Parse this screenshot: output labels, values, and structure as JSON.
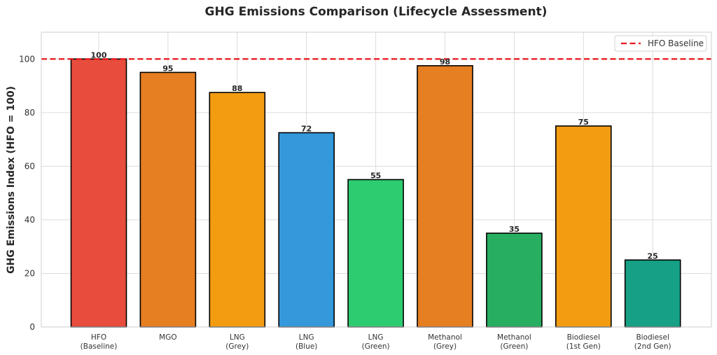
{
  "chart_data": {
    "type": "bar",
    "title": "GHG Emissions Comparison (Lifecycle Assessment)",
    "xlabel": "",
    "ylabel": "GHG Emissions Index (HFO = 100)",
    "ylim": [
      0,
      110
    ],
    "yticks": [
      0,
      20,
      40,
      60,
      80,
      100
    ],
    "grid": true,
    "categories": [
      [
        "HFO",
        "(Baseline)"
      ],
      [
        "MGO"
      ],
      [
        "LNG",
        "(Grey)"
      ],
      [
        "LNG",
        "(Blue)"
      ],
      [
        "LNG",
        "(Green)"
      ],
      [
        "Methanol",
        "(Grey)"
      ],
      [
        "Methanol",
        "(Green)"
      ],
      [
        "Biodiesel",
        "(1st Gen)"
      ],
      [
        "Biodiesel",
        "(2nd Gen)"
      ]
    ],
    "values": [
      100,
      95,
      87.5,
      72.5,
      55,
      97.5,
      35,
      75,
      25
    ],
    "data_labels": [
      "100",
      "95",
      "88",
      "72",
      "55",
      "98",
      "35",
      "75",
      "25"
    ],
    "colors": [
      "#e74c3c",
      "#e67e22",
      "#f39c12",
      "#3498db",
      "#2ecc71",
      "#e67e22",
      "#27ae60",
      "#f39c12",
      "#16a085"
    ],
    "baseline": {
      "value": 100,
      "label": "HFO Baseline",
      "color": "#e8161b"
    },
    "legend": {
      "placement": "top-right",
      "entries": [
        "HFO Baseline"
      ]
    }
  }
}
